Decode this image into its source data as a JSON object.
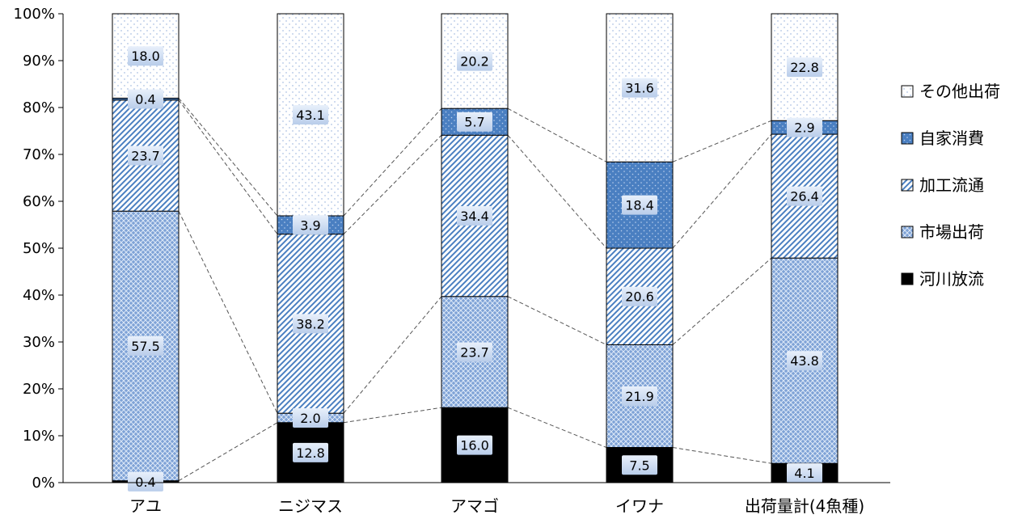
{
  "chart_data": {
    "type": "bar",
    "stacked": true,
    "percent_stacked": true,
    "categories": [
      "アユ",
      "ニジマス",
      "アマゴ",
      "イワナ",
      "出荷量計(4魚種)"
    ],
    "series": [
      {
        "name": "河川放流",
        "values": [
          0.4,
          12.8,
          16.0,
          7.5,
          4.1
        ],
        "color": "#000000",
        "pattern": "solid-black"
      },
      {
        "name": "市場出荷",
        "values": [
          57.5,
          2.0,
          23.7,
          21.9,
          43.8
        ],
        "color": "#5b89c8",
        "pattern": "blue-crosshatch"
      },
      {
        "name": "加工流通",
        "values": [
          23.7,
          38.2,
          34.4,
          20.6,
          26.4
        ],
        "color": "#4a7fc1",
        "pattern": "blue-diagonal-stripes"
      },
      {
        "name": "自家消費",
        "values": [
          0.4,
          3.9,
          5.7,
          18.4,
          2.9
        ],
        "color": "#3d6fb5",
        "pattern": "blue-dotted"
      },
      {
        "name": "その他出荷",
        "values": [
          18.0,
          43.1,
          20.2,
          31.6,
          22.8
        ],
        "color": "#ffffff",
        "pattern": "white-dotted"
      }
    ],
    "legend_order": [
      "その他出荷",
      "自家消費",
      "加工流通",
      "市場出荷",
      "河川放流"
    ],
    "legend_position": "right",
    "y_ticks": [
      "0%",
      "10%",
      "20%",
      "30%",
      "40%",
      "50%",
      "60%",
      "70%",
      "80%",
      "90%",
      "100%"
    ],
    "ylim": [
      0,
      100
    ],
    "connector_lines": true,
    "title": "",
    "xlabel": "",
    "ylabel": ""
  }
}
